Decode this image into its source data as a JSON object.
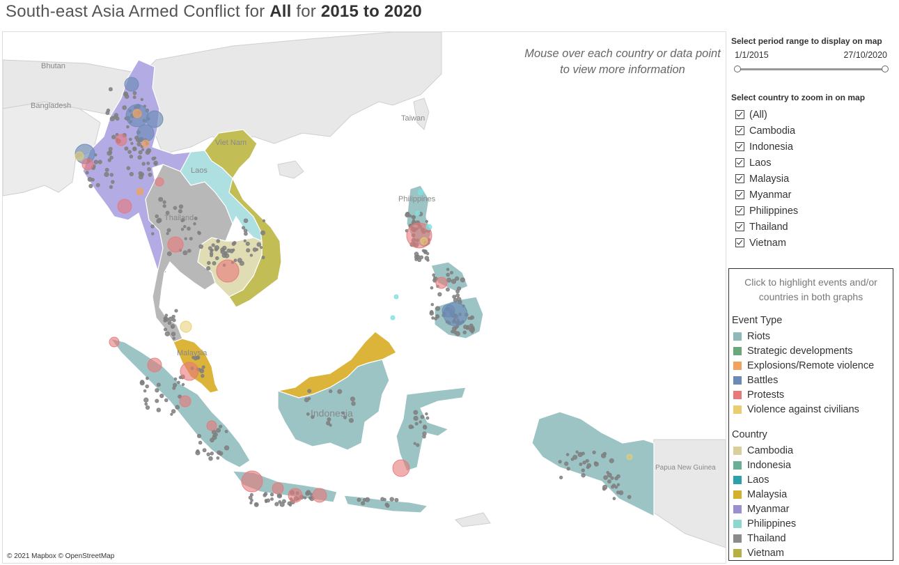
{
  "title": {
    "prefix": "South-east Asia Armed Conflict for ",
    "country": "All",
    "mid": " for ",
    "period": "2015 to 2020"
  },
  "map": {
    "note": "Mouse over each country or data point to view more information",
    "attribution": "© 2021 Mapbox © OpenStreetMap",
    "labels": {
      "bhutan": "Bhutan",
      "bangladesh": "Bangladesh",
      "taiwan": "Taiwan",
      "vietnam": "Viet Nam",
      "laos": "Laos",
      "thailand": "Thailand",
      "philippines": "Philippines",
      "malaysia": "Malaysia",
      "indonesia": "Indonesia",
      "png": "Papua New Guinea"
    }
  },
  "period": {
    "title": "Select period range to display on map",
    "start": "1/1/2015",
    "end": "27/10/2020"
  },
  "country_filter": {
    "title": "Select country to zoom in on map",
    "options": [
      "(All)",
      "Cambodia",
      "Indonesia",
      "Laos",
      "Malaysia",
      "Myanmar",
      "Philippines",
      "Thailand",
      "Vietnam"
    ]
  },
  "legend": {
    "hint": "Click to highlight events and/or countries in both graphs",
    "event_title": "Event Type",
    "events": [
      {
        "name": "Riots",
        "color": "#8fb8b8"
      },
      {
        "name": "Strategic developments",
        "color": "#6aa77a"
      },
      {
        "name": "Explosions/Remote violence",
        "color": "#f0a35e"
      },
      {
        "name": "Battles",
        "color": "#6b8bb5"
      },
      {
        "name": "Protests",
        "color": "#e8787a"
      },
      {
        "name": "Violence against civilians",
        "color": "#eacd6e"
      }
    ],
    "country_title": "Country",
    "countries": [
      {
        "name": "Cambodia",
        "color": "#d8cf9a"
      },
      {
        "name": "Indonesia",
        "color": "#6aae96"
      },
      {
        "name": "Laos",
        "color": "#2aa1ad"
      },
      {
        "name": "Malaysia",
        "color": "#d4b12c"
      },
      {
        "name": "Myanmar",
        "color": "#9a8fd0"
      },
      {
        "name": "Philippines",
        "color": "#8ed7cf"
      },
      {
        "name": "Thailand",
        "color": "#8b8b8b"
      },
      {
        "name": "Vietnam",
        "color": "#b5b046"
      }
    ]
  },
  "map_fills": {
    "myanmar": "#b3abe3",
    "thailand": "#b8b8b8",
    "laos": "#aee0e2",
    "vietnam": "#c2bd55",
    "cambodia": "#e0ddb4",
    "malaysia": "#dcb43a",
    "indonesia": "#9cc4c4",
    "philippines": "#9cc4c4",
    "land": "#e6e6e6"
  }
}
